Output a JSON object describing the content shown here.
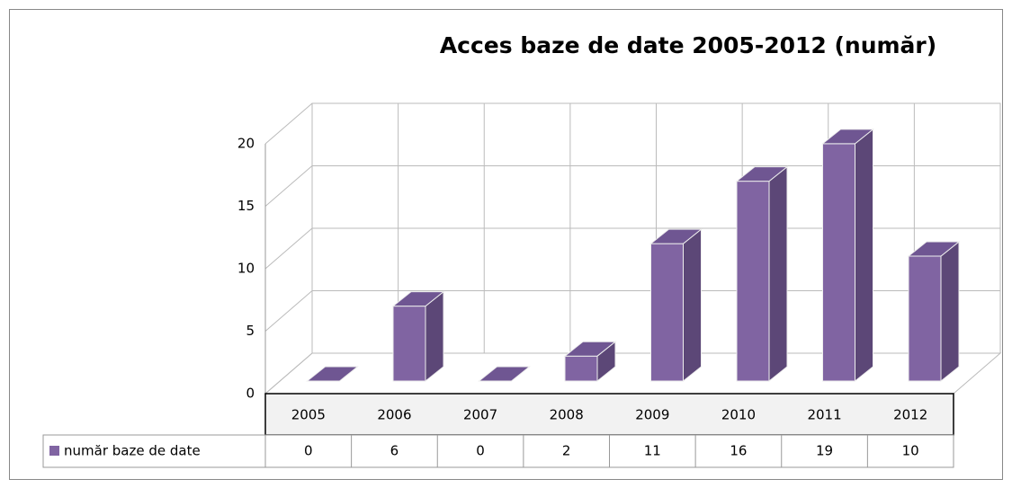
{
  "chart_data": {
    "type": "bar3d",
    "title": "Acces baze de date 2005-2012 (număr)",
    "categories": [
      "2005",
      "2006",
      "2007",
      "2008",
      "2009",
      "2010",
      "2011",
      "2012"
    ],
    "series": [
      {
        "name": "număr baze de date",
        "color": "#8064a2",
        "values": [
          0,
          6,
          0,
          2,
          11,
          16,
          19,
          10
        ]
      }
    ],
    "ylim": [
      0,
      20
    ],
    "yticks": [
      0,
      5,
      10,
      15,
      20
    ],
    "grid": true,
    "data_table": true
  }
}
